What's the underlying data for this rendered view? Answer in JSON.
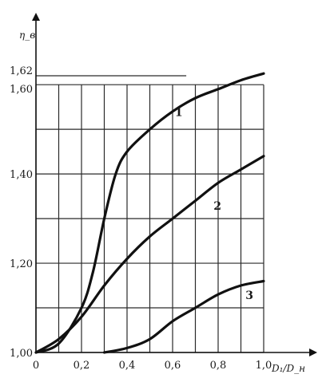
{
  "chart_data": {
    "type": "line",
    "title": "",
    "xlabel": "D₁/D_н",
    "ylabel": "η_в",
    "xlim": [
      0,
      1.0
    ],
    "ylim": [
      1.0,
      1.62
    ],
    "x_ticks": [
      {
        "value": 0,
        "label": "0"
      },
      {
        "value": 0.2,
        "label": "0,2"
      },
      {
        "value": 0.4,
        "label": "0,4"
      },
      {
        "value": 0.6,
        "label": "0,6"
      },
      {
        "value": 0.8,
        "label": "0,8"
      },
      {
        "value": 1.0,
        "label": "1,0"
      }
    ],
    "y_ticks": [
      {
        "value": 1.0,
        "label": "1,00"
      },
      {
        "value": 1.2,
        "label": "1,20"
      },
      {
        "value": 1.4,
        "label": "1,40"
      },
      {
        "value": 1.6,
        "label": "1,60"
      },
      {
        "value": 1.62,
        "label": "1,62"
      }
    ],
    "grid": true,
    "series": [
      {
        "name": "1",
        "points": [
          [
            0,
            1.0
          ],
          [
            0.1,
            1.02
          ],
          [
            0.2,
            1.1
          ],
          [
            0.25,
            1.18
          ],
          [
            0.3,
            1.3
          ],
          [
            0.35,
            1.4
          ],
          [
            0.4,
            1.45
          ],
          [
            0.5,
            1.5
          ],
          [
            0.6,
            1.54
          ],
          [
            0.7,
            1.57
          ],
          [
            0.8,
            1.59
          ],
          [
            0.9,
            1.61
          ],
          [
            1.0,
            1.625
          ]
        ],
        "label_at": [
          0.61,
          1.53
        ]
      },
      {
        "name": "2",
        "points": [
          [
            0,
            1.0
          ],
          [
            0.1,
            1.03
          ],
          [
            0.2,
            1.08
          ],
          [
            0.3,
            1.15
          ],
          [
            0.4,
            1.21
          ],
          [
            0.5,
            1.26
          ],
          [
            0.6,
            1.3
          ],
          [
            0.7,
            1.34
          ],
          [
            0.8,
            1.38
          ],
          [
            0.9,
            1.41
          ],
          [
            1.0,
            1.44
          ]
        ],
        "label_at": [
          0.78,
          1.32
        ]
      },
      {
        "name": "3",
        "points": [
          [
            0.3,
            1.0
          ],
          [
            0.4,
            1.01
          ],
          [
            0.5,
            1.03
          ],
          [
            0.6,
            1.07
          ],
          [
            0.7,
            1.1
          ],
          [
            0.8,
            1.13
          ],
          [
            0.9,
            1.15
          ],
          [
            1.0,
            1.16
          ]
        ],
        "label_at": [
          0.92,
          1.12
        ]
      }
    ]
  }
}
